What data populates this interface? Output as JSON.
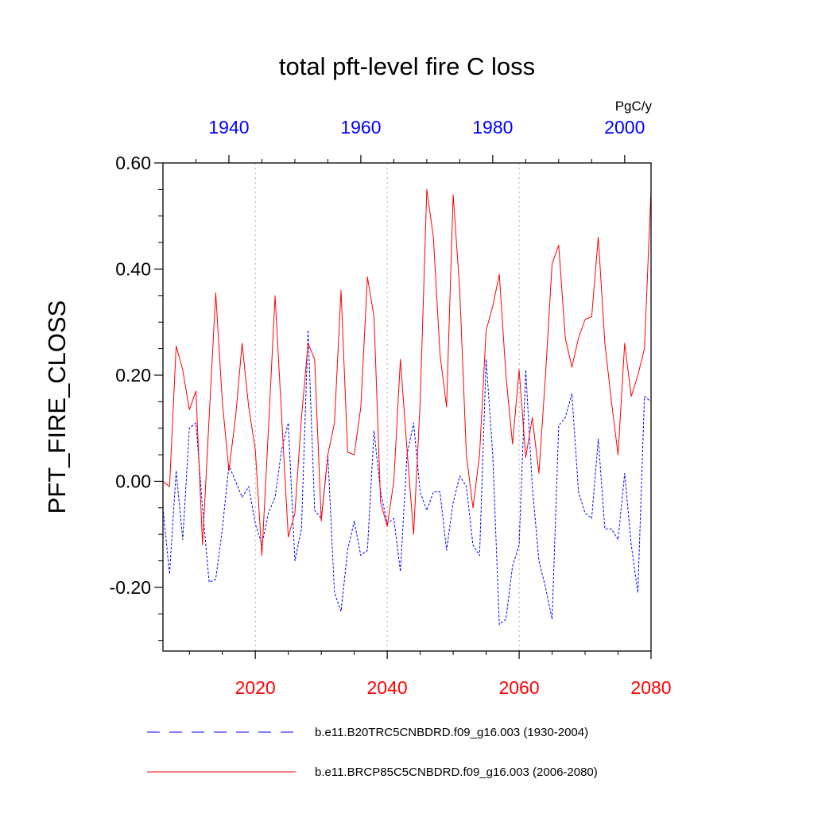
{
  "chart_data": {
    "type": "line",
    "title": "total pft-level fire C loss",
    "ylabel": "PFT_FIRE_CLOSS",
    "units": "PgC/y",
    "ylim": [
      -0.32,
      0.6
    ],
    "yticks": [
      0.6,
      0.4,
      0.2,
      0.0,
      -0.2
    ],
    "ytick_labels": [
      "0.60",
      "0.40",
      "0.20",
      "0.00",
      "-0.20"
    ],
    "x_bottom": {
      "range": [
        2006,
        2080
      ],
      "ticks": [
        2020,
        2040,
        2060,
        2080
      ],
      "labels": [
        "2020",
        "2040",
        "2060",
        "2080"
      ],
      "color": "#ff0000"
    },
    "x_top": {
      "range": [
        1930,
        2004
      ],
      "ticks": [
        1940,
        1960,
        1980,
        2000
      ],
      "labels": [
        "1940",
        "1960",
        "1980",
        "2000"
      ],
      "color": "#0000ff"
    },
    "grid": "vertical dotted at bottom-axis major ticks",
    "series": [
      {
        "name": "b.e11.B20TRC5CNBDRD.f09_g16.003 (1930-2004)",
        "color": "#0000ff",
        "style": "dashed",
        "axis": "top",
        "x": [
          1930,
          1931,
          1932,
          1933,
          1934,
          1935,
          1936,
          1937,
          1938,
          1939,
          1940,
          1941,
          1942,
          1943,
          1944,
          1945,
          1946,
          1947,
          1948,
          1949,
          1950,
          1951,
          1952,
          1953,
          1954,
          1955,
          1956,
          1957,
          1958,
          1959,
          1960,
          1961,
          1962,
          1963,
          1964,
          1965,
          1966,
          1967,
          1968,
          1969,
          1970,
          1971,
          1972,
          1973,
          1974,
          1975,
          1976,
          1977,
          1978,
          1979,
          1980,
          1981,
          1982,
          1983,
          1984,
          1985,
          1986,
          1987,
          1988,
          1989,
          1990,
          1991,
          1992,
          1993,
          1994,
          1995,
          1996,
          1997,
          1998,
          1999,
          2000,
          2001,
          2002,
          2003,
          2004
        ],
        "values": [
          -0.05,
          -0.175,
          0.02,
          -0.11,
          0.1,
          0.11,
          -0.05,
          -0.19,
          -0.185,
          -0.09,
          0.03,
          0.0,
          -0.03,
          -0.01,
          -0.08,
          -0.12,
          -0.06,
          -0.03,
          0.06,
          0.11,
          -0.15,
          -0.09,
          0.285,
          -0.055,
          -0.07,
          0.05,
          -0.21,
          -0.245,
          -0.13,
          -0.075,
          -0.14,
          -0.13,
          0.095,
          -0.02,
          -0.08,
          -0.07,
          -0.17,
          0.05,
          0.11,
          -0.02,
          -0.055,
          -0.02,
          -0.02,
          -0.13,
          -0.04,
          0.01,
          -0.01,
          -0.12,
          -0.14,
          0.23,
          0.05,
          -0.27,
          -0.26,
          -0.16,
          -0.12,
          0.21,
          -0.01,
          -0.15,
          -0.2,
          -0.26,
          0.105,
          0.12,
          0.165,
          -0.02,
          -0.06,
          -0.07,
          0.08,
          -0.09,
          -0.09,
          -0.11,
          0.015,
          -0.12,
          -0.21,
          0.16,
          0.15
        ]
      },
      {
        "name": "b.e11.BRCP85C5CNBDRD.f09_g16.003 (2006-2080)",
        "color": "#ff0000",
        "style": "solid",
        "axis": "bottom",
        "x": [
          2006,
          2007,
          2008,
          2009,
          2010,
          2011,
          2012,
          2013,
          2014,
          2015,
          2016,
          2017,
          2018,
          2019,
          2020,
          2021,
          2022,
          2023,
          2024,
          2025,
          2026,
          2027,
          2028,
          2029,
          2030,
          2031,
          2032,
          2033,
          2034,
          2035,
          2036,
          2037,
          2038,
          2039,
          2040,
          2041,
          2042,
          2043,
          2044,
          2045,
          2046,
          2047,
          2048,
          2049,
          2050,
          2051,
          2052,
          2053,
          2054,
          2055,
          2056,
          2057,
          2058,
          2059,
          2060,
          2061,
          2062,
          2063,
          2064,
          2065,
          2066,
          2067,
          2068,
          2069,
          2070,
          2071,
          2072,
          2073,
          2074,
          2075,
          2076,
          2077,
          2078,
          2079,
          2080
        ],
        "values": [
          0.0,
          -0.01,
          0.255,
          0.21,
          0.135,
          0.17,
          -0.12,
          0.12,
          0.355,
          0.15,
          0.02,
          0.12,
          0.26,
          0.14,
          0.06,
          -0.14,
          0.1,
          0.35,
          0.12,
          -0.105,
          -0.06,
          0.12,
          0.26,
          0.23,
          -0.075,
          0.05,
          0.11,
          0.36,
          0.055,
          0.05,
          0.14,
          0.385,
          0.31,
          -0.04,
          -0.085,
          0.0,
          0.23,
          0.06,
          -0.1,
          0.15,
          0.55,
          0.46,
          0.24,
          0.14,
          0.54,
          0.36,
          0.05,
          -0.05,
          0.05,
          0.285,
          0.33,
          0.39,
          0.2,
          0.07,
          0.21,
          0.045,
          0.12,
          0.015,
          0.2,
          0.41,
          0.445,
          0.27,
          0.215,
          0.27,
          0.305,
          0.31,
          0.46,
          0.26,
          0.15,
          0.05,
          0.26,
          0.16,
          0.2,
          0.25,
          0.55
        ]
      }
    ]
  }
}
